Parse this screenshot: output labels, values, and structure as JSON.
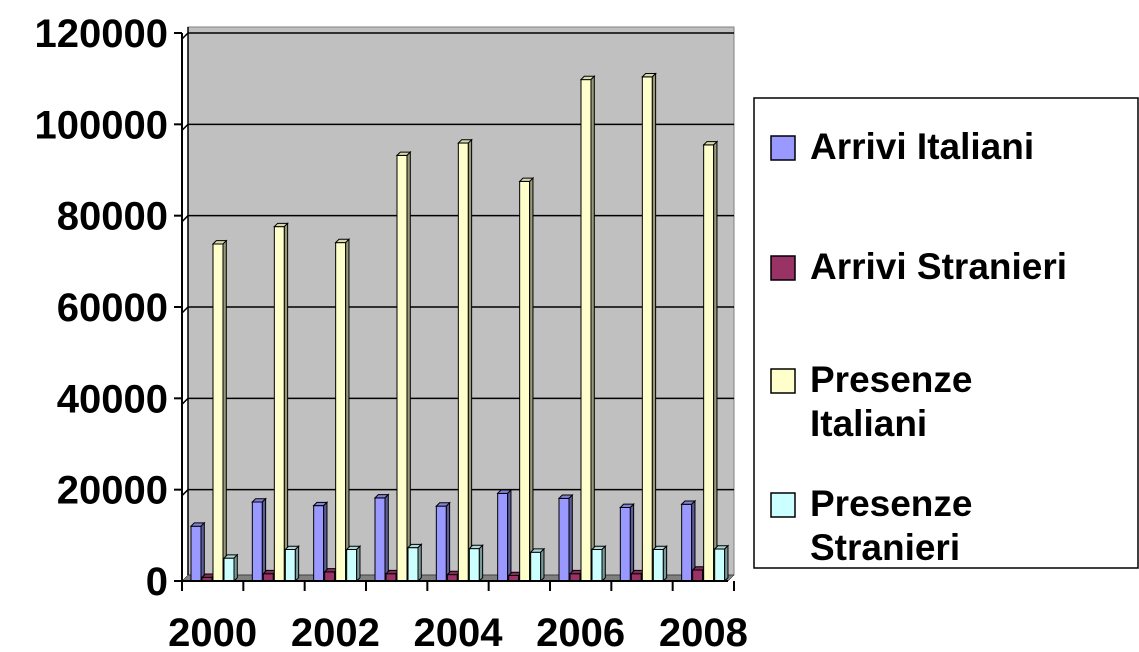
{
  "chart_data": {
    "type": "bar",
    "title": "",
    "xlabel": "",
    "ylabel": "",
    "categories": [
      "2000",
      "2001",
      "2002",
      "2003",
      "2004",
      "2005",
      "2006",
      "2007",
      "2008"
    ],
    "x_tick_labels": [
      "2000",
      "2002",
      "2004",
      "2006",
      "2008"
    ],
    "y_ticks": [
      "0",
      "20000",
      "40000",
      "60000",
      "80000",
      "100000",
      "120000"
    ],
    "ylim": [
      0,
      120000
    ],
    "grid": true,
    "legend_position": "right",
    "plot_background": "#c0c0c0",
    "series": [
      {
        "name": "Arrivi Italiani",
        "color": "#9999ff",
        "values": [
          12000,
          17300,
          16500,
          18200,
          16400,
          19200,
          18100,
          16100,
          16800
        ]
      },
      {
        "name": "Arrivi Stranieri",
        "color": "#993366",
        "values": [
          800,
          1600,
          2000,
          1600,
          1400,
          1200,
          1600,
          1600,
          2400
        ]
      },
      {
        "name": "Presenze Italiani",
        "color": "#ffffcc",
        "values": [
          73800,
          77600,
          74100,
          93200,
          95900,
          87500,
          109800,
          110400,
          95500
        ]
      },
      {
        "name": "Presenze Stranieri",
        "color": "#ccffff",
        "values": [
          5000,
          6900,
          6900,
          7300,
          7100,
          6300,
          6900,
          6900,
          7000
        ]
      }
    ]
  }
}
